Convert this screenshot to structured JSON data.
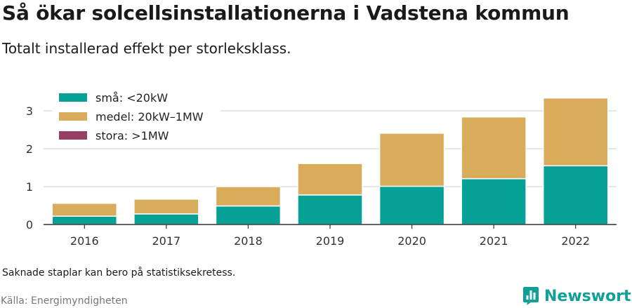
{
  "header": {
    "title": "Så ökar solcellsinstallationerna i Vadstena kommun",
    "subtitle": "Totalt installerad effekt per storleksklass."
  },
  "footer": {
    "note": "Saknade staplar kan bero på statistiksekretess.",
    "source": "Källa: Energimyndigheten",
    "brand": "Newsworthy"
  },
  "icons": {
    "logo": "bar-chart-icon"
  },
  "chart_data": {
    "type": "bar",
    "stacked": true,
    "categories": [
      "2016",
      "2017",
      "2018",
      "2019",
      "2020",
      "2021",
      "2022"
    ],
    "series": [
      {
        "name": "små: <20kW",
        "color": "#05a197",
        "values": [
          0.22,
          0.28,
          0.49,
          0.78,
          1.01,
          1.21,
          1.55
        ]
      },
      {
        "name": "medel: 20kW–1MW",
        "color": "#d9ac5b",
        "values": [
          0.34,
          0.39,
          0.51,
          0.83,
          1.4,
          1.63,
          1.79
        ]
      },
      {
        "name": "stora: >1MW",
        "color": "#9a3f64",
        "values": [
          0,
          0,
          0,
          0,
          0,
          0,
          0
        ]
      }
    ],
    "ylim": [
      0,
      3.5
    ],
    "yticks": [
      0,
      1,
      2,
      3
    ],
    "grid": true,
    "legend": "top-left"
  }
}
